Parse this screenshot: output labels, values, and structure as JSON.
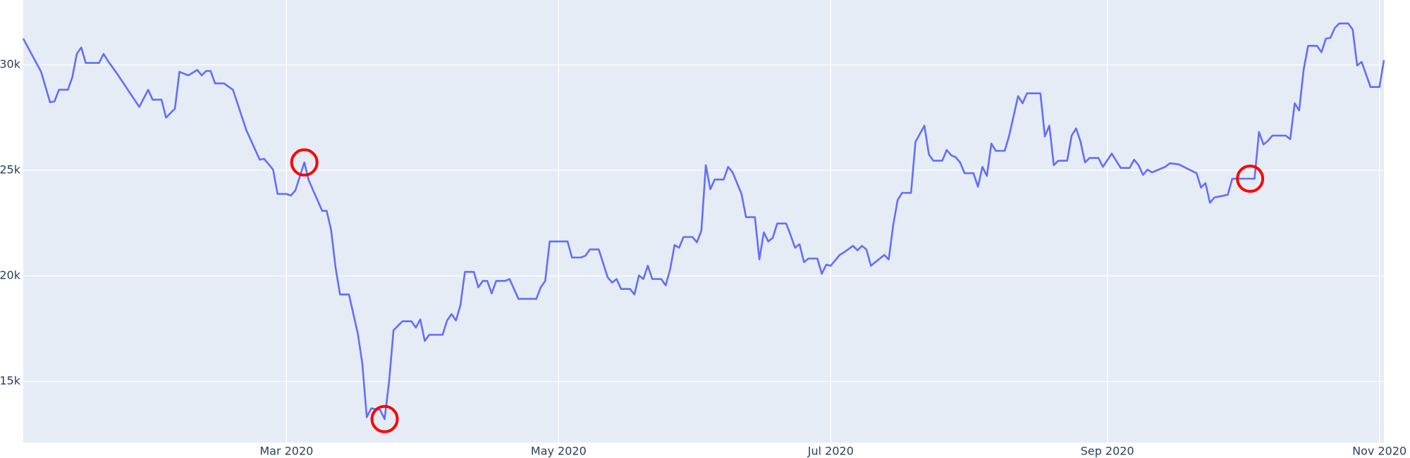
{
  "chart_data": {
    "type": "line",
    "x": [
      "2020-01-02",
      "2020-01-06",
      "2020-01-08",
      "2020-01-09",
      "2020-01-10",
      "2020-01-12",
      "2020-01-13",
      "2020-01-14",
      "2020-01-15",
      "2020-01-16",
      "2020-01-19",
      "2020-01-20",
      "2020-01-21",
      "2020-01-23",
      "2020-01-28",
      "2020-01-30",
      "2020-01-31",
      "2020-02-02",
      "2020-02-03",
      "2020-02-05",
      "2020-02-06",
      "2020-02-08",
      "2020-02-10",
      "2020-02-11",
      "2020-02-12",
      "2020-02-13",
      "2020-02-14",
      "2020-02-16",
      "2020-02-18",
      "2020-02-21",
      "2020-02-24",
      "2020-02-25",
      "2020-02-27",
      "2020-02-28",
      "2020-03-01",
      "2020-03-02",
      "2020-03-03",
      "2020-03-05",
      "2020-03-06",
      "2020-03-09",
      "2020-03-10",
      "2020-03-11",
      "2020-03-12",
      "2020-03-13",
      "2020-03-15",
      "2020-03-17",
      "2020-03-18",
      "2020-03-19",
      "2020-03-20",
      "2020-03-22",
      "2020-03-23",
      "2020-03-24",
      "2020-03-25",
      "2020-03-27",
      "2020-03-29",
      "2020-03-30",
      "2020-03-31",
      "2020-04-01",
      "2020-04-02",
      "2020-04-05",
      "2020-04-06",
      "2020-04-07",
      "2020-04-08",
      "2020-04-09",
      "2020-04-10",
      "2020-04-12",
      "2020-04-13",
      "2020-04-14",
      "2020-04-15",
      "2020-04-16",
      "2020-04-17",
      "2020-04-19",
      "2020-04-20",
      "2020-04-22",
      "2020-04-26",
      "2020-04-27",
      "2020-04-28",
      "2020-04-29",
      "2020-05-03",
      "2020-05-04",
      "2020-05-06",
      "2020-05-07",
      "2020-05-08",
      "2020-05-10",
      "2020-05-12",
      "2020-05-13",
      "2020-05-14",
      "2020-05-15",
      "2020-05-17",
      "2020-05-18",
      "2020-05-19",
      "2020-05-20",
      "2020-05-21",
      "2020-05-22",
      "2020-05-24",
      "2020-05-25",
      "2020-05-26",
      "2020-05-27",
      "2020-05-28",
      "2020-05-29",
      "2020-05-31",
      "2020-06-01",
      "2020-06-02",
      "2020-06-03",
      "2020-06-04",
      "2020-06-05",
      "2020-06-07",
      "2020-06-08",
      "2020-06-09",
      "2020-06-11",
      "2020-06-12",
      "2020-06-14",
      "2020-06-15",
      "2020-06-16",
      "2020-06-17",
      "2020-06-18",
      "2020-06-19",
      "2020-06-21",
      "2020-06-22",
      "2020-06-23",
      "2020-06-24",
      "2020-06-25",
      "2020-06-26",
      "2020-06-28",
      "2020-06-29",
      "2020-06-30",
      "2020-07-01",
      "2020-07-03",
      "2020-07-04",
      "2020-07-06",
      "2020-07-07",
      "2020-07-08",
      "2020-07-09",
      "2020-07-10",
      "2020-07-13",
      "2020-07-14",
      "2020-07-15",
      "2020-07-16",
      "2020-07-17",
      "2020-07-19",
      "2020-07-20",
      "2020-07-22",
      "2020-07-23",
      "2020-07-24",
      "2020-07-26",
      "2020-07-27",
      "2020-07-28",
      "2020-07-29",
      "2020-07-30",
      "2020-07-31",
      "2020-08-02",
      "2020-08-03",
      "2020-08-04",
      "2020-08-05",
      "2020-08-06",
      "2020-08-07",
      "2020-08-09",
      "2020-08-10",
      "2020-08-12",
      "2020-08-13",
      "2020-08-14",
      "2020-08-17",
      "2020-08-18",
      "2020-08-19",
      "2020-08-20",
      "2020-08-21",
      "2020-08-23",
      "2020-08-24",
      "2020-08-25",
      "2020-08-26",
      "2020-08-27",
      "2020-08-28",
      "2020-08-30",
      "2020-08-31",
      "2020-09-02",
      "2020-09-04",
      "2020-09-06",
      "2020-09-07",
      "2020-09-08",
      "2020-09-09",
      "2020-09-10",
      "2020-09-11",
      "2020-09-14",
      "2020-09-15",
      "2020-09-17",
      "2020-09-21",
      "2020-09-22",
      "2020-09-23",
      "2020-09-24",
      "2020-09-25",
      "2020-09-28",
      "2020-09-29",
      "2020-10-04",
      "2020-10-05",
      "2020-10-06",
      "2020-10-07",
      "2020-10-08",
      "2020-10-11",
      "2020-10-12",
      "2020-10-13",
      "2020-10-14",
      "2020-10-15",
      "2020-10-16",
      "2020-10-18",
      "2020-10-19",
      "2020-10-20",
      "2020-10-21",
      "2020-10-22",
      "2020-10-23",
      "2020-10-25",
      "2020-10-26",
      "2020-10-27",
      "2020-10-28",
      "2020-10-30",
      "2020-11-01",
      "2020-11-02"
    ],
    "series": [
      {
        "color": "#636efa",
        "values": [
          31230,
          29660,
          28220,
          28260,
          28810,
          28810,
          29410,
          30510,
          30810,
          30080,
          30080,
          30510,
          30170,
          29580,
          28000,
          28810,
          28340,
          28340,
          27490,
          27920,
          29660,
          29490,
          29750,
          29490,
          29700,
          29700,
          29110,
          29110,
          28810,
          26900,
          25500,
          25540,
          25030,
          23880,
          23880,
          23800,
          24050,
          25370,
          24520,
          23080,
          23080,
          22180,
          20400,
          19120,
          19120,
          17260,
          15850,
          13310,
          13730,
          13650,
          13220,
          15000,
          17430,
          17850,
          17850,
          17550,
          17940,
          16920,
          17210,
          17210,
          17890,
          18190,
          17890,
          18620,
          20190,
          20190,
          19460,
          19760,
          19760,
          19170,
          19760,
          19760,
          19850,
          18910,
          18910,
          19460,
          19760,
          21630,
          21630,
          20870,
          20870,
          20950,
          21250,
          21250,
          19930,
          19680,
          19850,
          19380,
          19380,
          19120,
          20020,
          19850,
          20480,
          19850,
          19850,
          19550,
          20310,
          21460,
          21330,
          21840,
          21840,
          21590,
          22140,
          25240,
          24100,
          24560,
          24560,
          25160,
          24900,
          23880,
          22780,
          22780,
          20780,
          22060,
          21630,
          21800,
          22480,
          22480,
          21930,
          21330,
          21500,
          20650,
          20820,
          20820,
          20100,
          20530,
          20480,
          20990,
          21120,
          21420,
          21210,
          21420,
          21250,
          20480,
          20990,
          20780,
          22400,
          23590,
          23930,
          23930,
          26350,
          27110,
          25750,
          25450,
          25450,
          25960,
          25710,
          25620,
          25370,
          24860,
          24860,
          24220,
          25160,
          24730,
          26260,
          25920,
          25920,
          26640,
          28510,
          28170,
          28640,
          28640,
          26600,
          27110,
          25240,
          25450,
          25450,
          26640,
          26980,
          26350,
          25370,
          25580,
          25580,
          25160,
          25790,
          25110,
          25110,
          25500,
          25240,
          24780,
          25030,
          24900,
          25160,
          25330,
          25280,
          24860,
          24180,
          24390,
          23460,
          23710,
          23840,
          24600,
          24600,
          26810,
          26220,
          26390,
          26640,
          26640,
          26470,
          28170,
          27830,
          29750,
          30890,
          30890,
          30590,
          31230,
          31270,
          31740,
          31950,
          31950,
          31660,
          29960,
          30130,
          28940,
          28940,
          30210
        ]
      }
    ],
    "markers": {
      "color": "#ff0000",
      "x": [
        "2020-03-05",
        "2020-03-23",
        "2020-10-03"
      ],
      "values": [
        25370,
        13220,
        24600
      ]
    },
    "xlim": [
      "2020-01-02",
      "2020-11-02"
    ],
    "ylim": [
      12110,
      33060
    ],
    "xticks": [
      {
        "value": "2020-03-01",
        "label": "Mar 2020"
      },
      {
        "value": "2020-05-01",
        "label": "May 2020"
      },
      {
        "value": "2020-07-01",
        "label": "Jul 2020"
      },
      {
        "value": "2020-09-01",
        "label": "Sep 2020"
      },
      {
        "value": "2020-11-01",
        "label": "Nov 2020"
      }
    ],
    "yticks": [
      {
        "value": 15000,
        "label": "15k"
      },
      {
        "value": 20000,
        "label": "20k"
      },
      {
        "value": 25000,
        "label": "25k"
      },
      {
        "value": 30000,
        "label": "30k"
      }
    ],
    "grid": true
  }
}
